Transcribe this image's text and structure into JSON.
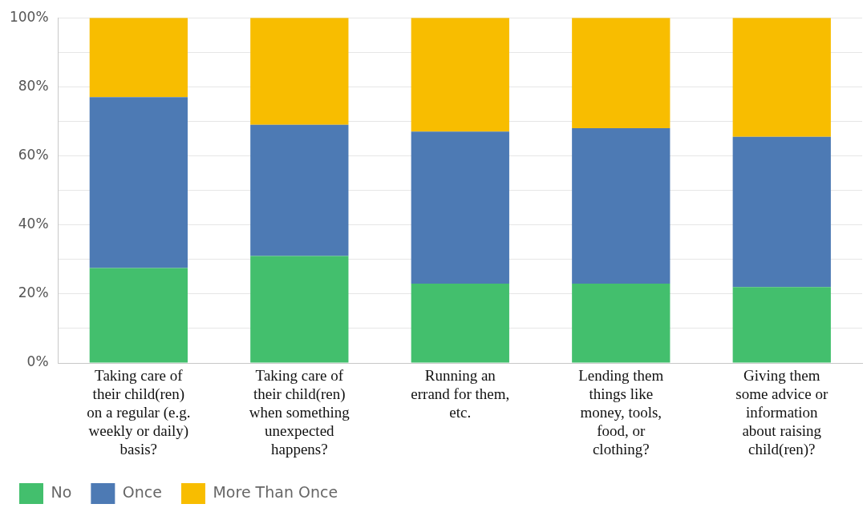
{
  "chart_data": {
    "type": "bar",
    "stacked": true,
    "categories": [
      "Taking care of their child(ren) on a regular (e.g. weekly or daily) basis?",
      "Taking care of their child(ren) when something unexpected happens?",
      "Running an errand for them, etc.",
      "Lending them things like money, tools, food, or clothing?",
      "Giving them some advice or information about raising child(ren)?"
    ],
    "series": [
      {
        "name": "No",
        "color": "#43bf6d",
        "values": [
          27.5,
          31,
          23,
          23,
          22
        ]
      },
      {
        "name": "Once",
        "color": "#4d7ab4",
        "values": [
          49.5,
          38,
          44,
          45,
          43.5
        ]
      },
      {
        "name": "More Than Once",
        "color": "#f8bd00",
        "values": [
          23,
          31,
          33,
          32,
          34.5
        ]
      }
    ],
    "ylim": [
      0,
      100
    ],
    "yticks": [
      {
        "value": 0,
        "label": "0%"
      },
      {
        "value": 10,
        "label": null
      },
      {
        "value": 20,
        "label": "20%"
      },
      {
        "value": 30,
        "label": null
      },
      {
        "value": 40,
        "label": "40%"
      },
      {
        "value": 50,
        "label": null
      },
      {
        "value": 60,
        "label": "60%"
      },
      {
        "value": 70,
        "label": null
      },
      {
        "value": 80,
        "label": "80%"
      },
      {
        "value": 90,
        "label": null
      },
      {
        "value": 100,
        "label": "100%"
      }
    ],
    "grid": "y",
    "legend": "bottom left"
  }
}
